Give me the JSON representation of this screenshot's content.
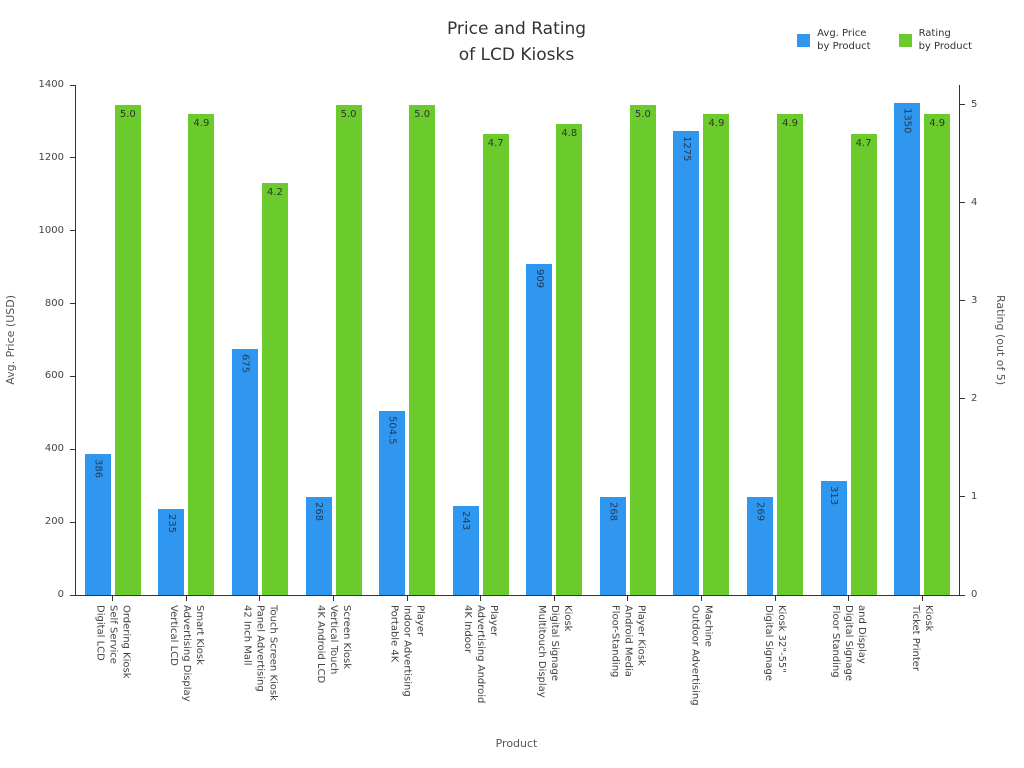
{
  "chart_data": {
    "type": "bar",
    "title": "Price and Rating\nof LCD Kiosks",
    "xlabel": "Product",
    "ylabel_left": "Avg. Price (USD)",
    "ylabel_right": "Rating (out of 5)",
    "grid": false,
    "legend_position": "top-right",
    "legend": [
      {
        "label": "Avg. Price\nby Product",
        "color": "#2f97f0"
      },
      {
        "label": "Rating\nby Product",
        "color": "#6ccb2c"
      }
    ],
    "categories": [
      "Digital LCD\nSelf Service\nOrdering Kiosk",
      "Vertical LCD\nAdvertising Display\nSmart Kiosk",
      "42 Inch Mall\nPanel Advertising\nTouch Screen Kiosk",
      "4K Android LCD\nVertical Touch\nScreen Kiosk",
      "Portable 4K\nIndoor Advertising\nPlayer",
      "4K Indoor\nAdvertising Android\nPlayer",
      "Multitouch Display\nDigital Signage\nKiosk",
      "Floor-Standing\nAndroid Media\nPlayer Kiosk",
      "Outdoor Advertising\nMachine",
      "Digital Signage\nKiosk 32\"-55\"",
      "Floor Standing\nDigital Signage\nand Display",
      "Ticket Printer\nKiosk"
    ],
    "series": [
      {
        "name": "Avg. Price by Product",
        "axis": "left",
        "color": "#2f97f0",
        "label_color": "#1f3a55",
        "values": [
          386,
          235,
          675,
          268,
          504.5,
          243,
          909,
          268,
          1275,
          269,
          313,
          1350
        ],
        "labels": [
          "386",
          "235",
          "675",
          "268",
          "504.5",
          "243",
          "909",
          "268",
          "1275",
          "269",
          "313",
          "1350"
        ]
      },
      {
        "name": "Rating by Product",
        "axis": "right",
        "color": "#6ccb2c",
        "label_color": "#333333",
        "values": [
          5.0,
          4.9,
          4.2,
          5.0,
          5.0,
          4.7,
          4.8,
          5.0,
          4.9,
          4.9,
          4.7,
          4.9
        ],
        "labels": [
          "5.0",
          "4.9",
          "4.2",
          "5.0",
          "5.0",
          "4.7",
          "4.8",
          "5.0",
          "4.9",
          "4.9",
          "4.7",
          "4.9"
        ]
      }
    ],
    "left_axis": {
      "min": 0,
      "max": 1400,
      "ticks": [
        0,
        200,
        400,
        600,
        800,
        1000,
        1200,
        1400
      ]
    },
    "right_axis": {
      "min": 0,
      "max": 5.2,
      "ticks": [
        0,
        1,
        2,
        3,
        4,
        5
      ]
    }
  }
}
